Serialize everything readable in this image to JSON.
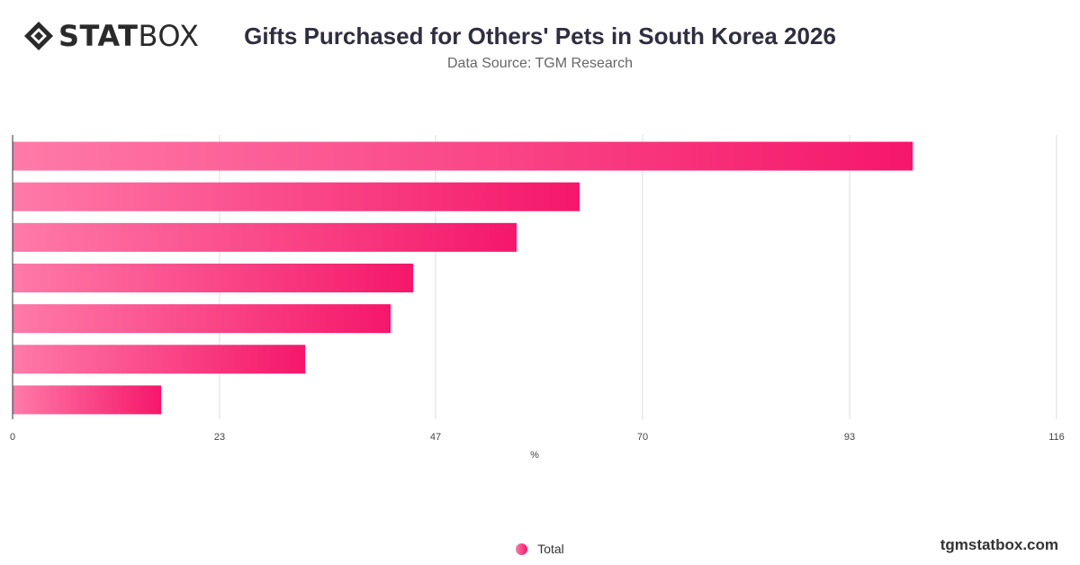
{
  "brand": {
    "logo_bold": "STAT",
    "logo_light": "BOX",
    "website": "tgmstatbox.com"
  },
  "header": {
    "title": "Gifts Purchased for Others' Pets in South Korea 2026",
    "subtitle": "Data Source: TGM Research"
  },
  "colors": {
    "bar_start": "#ff7aa8",
    "bar_end": "#f5176a",
    "grid": "#dddddd",
    "axis": "#333333"
  },
  "chart_data": {
    "type": "bar",
    "orientation": "horizontal",
    "title": "Gifts Purchased for Others' Pets in South Korea 2026",
    "subtitle": "Data Source: TGM Research",
    "xlabel": "%",
    "ylabel": "",
    "xlim": [
      0,
      116
    ],
    "x_ticks": [
      0,
      23,
      47,
      70,
      93,
      116
    ],
    "categories": [
      "",
      "",
      "",
      "",
      "",
      "",
      ""
    ],
    "series": [
      {
        "name": "Total",
        "values": [
          100,
          63,
          56,
          44.5,
          42,
          32.5,
          16.5
        ]
      }
    ],
    "grid": true,
    "legend": "bottom-center"
  },
  "legend": {
    "items": [
      "Total"
    ]
  }
}
